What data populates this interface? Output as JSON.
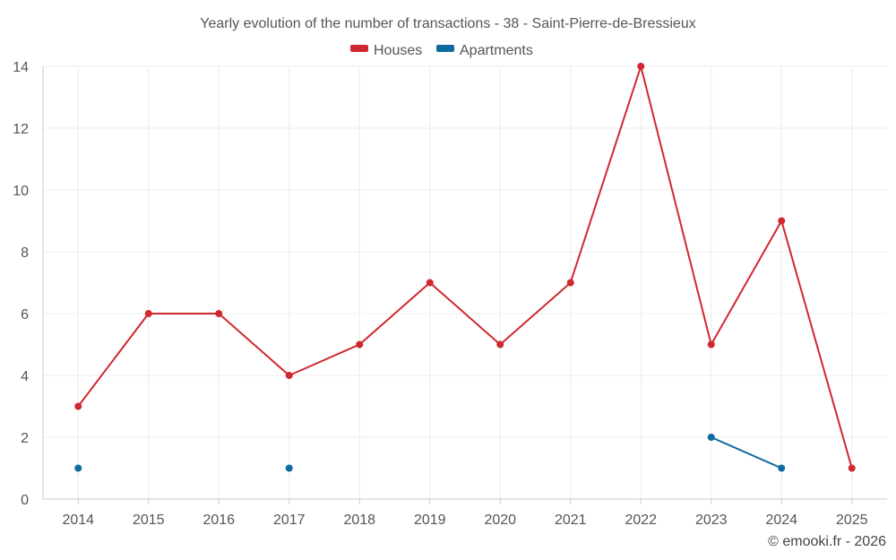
{
  "chart_data": {
    "type": "line",
    "title": "Yearly evolution of the number of transactions - 38 - Saint-Pierre-de-Bressieux",
    "categories": [
      "2014",
      "2015",
      "2016",
      "2017",
      "2018",
      "2019",
      "2020",
      "2021",
      "2022",
      "2023",
      "2024",
      "2025"
    ],
    "ylim": [
      0,
      14
    ],
    "yticks": [
      0,
      2,
      4,
      6,
      8,
      10,
      12,
      14
    ],
    "grid": true,
    "legend_position": "top-center",
    "series": [
      {
        "name": "Houses",
        "color": "#d0282e",
        "values": [
          3,
          6,
          6,
          4,
          5,
          7,
          5,
          7,
          14,
          5,
          9,
          1
        ]
      },
      {
        "name": "Apartments",
        "color": "#0f6aa0",
        "values": [
          1,
          null,
          null,
          1,
          null,
          null,
          null,
          null,
          null,
          2,
          1,
          null
        ]
      }
    ]
  },
  "credit": "© emooki.fr - 2026"
}
